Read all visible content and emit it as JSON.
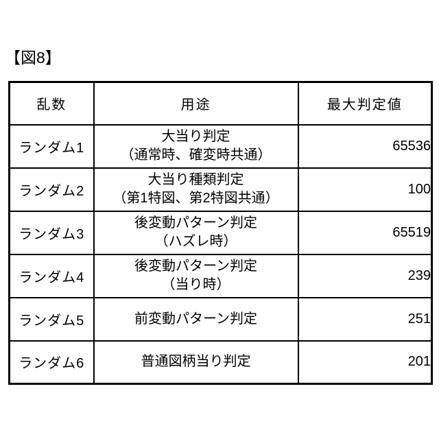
{
  "figure": {
    "label": "【図8】"
  },
  "table": {
    "headers": [
      "乱数",
      "用途",
      "最大判定値"
    ],
    "rows": [
      {
        "name": "ランダム1",
        "usage": "大当り判定\n（通常時、確変時共通）",
        "value": "65536"
      },
      {
        "name": "ランダム2",
        "usage": "大当り種類判定\n（第1特図、第2特図共通）",
        "value": "100"
      },
      {
        "name": "ランダム3",
        "usage": "後変動パターン判定\n（ハズレ時）",
        "value": "65519"
      },
      {
        "name": "ランダム4",
        "usage": "後変動パターン判定\n（当り時）",
        "value": "239"
      },
      {
        "name": "ランダム5",
        "usage": "前変動パターン判定",
        "value": "251"
      },
      {
        "name": "ランダム6",
        "usage": "普通図柄当り判定",
        "value": "201"
      }
    ]
  }
}
